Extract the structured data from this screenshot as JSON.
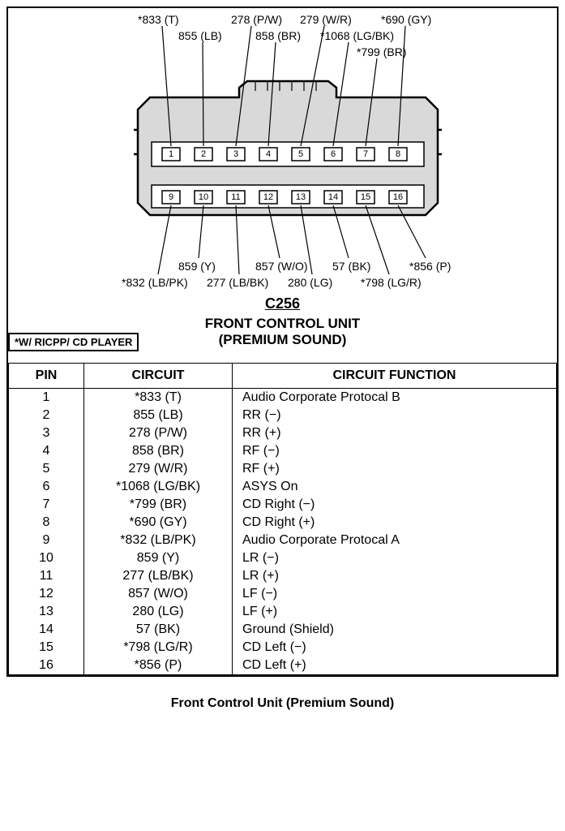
{
  "connector": {
    "id_label": "C256",
    "title_line1": "FRONT CONTROL UNIT",
    "title_line2": "(PREMIUM SOUND)",
    "note": "*W/ RICPP/ CD PLAYER",
    "top_row_pins": [
      1,
      2,
      3,
      4,
      5,
      6,
      7,
      8
    ],
    "bottom_row_pins": [
      9,
      10,
      11,
      12,
      13,
      14,
      15,
      16
    ],
    "body_fill": "#d9d9d9",
    "stroke_color": "#000000",
    "pin_box_w": 22,
    "pin_box_h": 16
  },
  "top_labels": {
    "l0": "*833 (T)",
    "l1": "855 (LB)",
    "l2": "278 (P/W)",
    "l3": "858 (BR)",
    "l4": "279 (W/R)",
    "l5": "*1068 (LG/BK)",
    "l6": "*799 (BR)",
    "l7": "*690 (GY)"
  },
  "bottom_labels": {
    "l0": "*832 (LB/PK)",
    "l1": "859 (Y)",
    "l2": "277 (LB/BK)",
    "l3": "857 (W/O)",
    "l4": "280 (LG)",
    "l5": "57 (BK)",
    "l6": "*798 (LG/R)",
    "l7": "*856 (P)"
  },
  "table": {
    "headers": {
      "pin": "PIN",
      "circuit": "CIRCUIT",
      "func": "CIRCUIT FUNCTION"
    },
    "rows": [
      {
        "pin": "1",
        "circuit": "*833 (T)",
        "func": "Audio Corporate Protocal B"
      },
      {
        "pin": "2",
        "circuit": "855 (LB)",
        "func": "RR (−)"
      },
      {
        "pin": "3",
        "circuit": "278 (P/W)",
        "func": "RR (+)"
      },
      {
        "pin": "4",
        "circuit": "858 (BR)",
        "func": "RF (−)"
      },
      {
        "pin": "5",
        "circuit": "279 (W/R)",
        "func": "RF (+)"
      },
      {
        "pin": "6",
        "circuit": "*1068 (LG/BK)",
        "func": "ASYS On"
      },
      {
        "pin": "7",
        "circuit": "*799 (BR)",
        "func": "CD Right (−)"
      },
      {
        "pin": "8",
        "circuit": "*690 (GY)",
        "func": "CD Right (+)"
      },
      {
        "pin": "9",
        "circuit": "*832 (LB/PK)",
        "func": "Audio Corporate Protocal A"
      },
      {
        "pin": "10",
        "circuit": "859 (Y)",
        "func": "LR (−)"
      },
      {
        "pin": "11",
        "circuit": "277 (LB/BK)",
        "func": "LR (+)"
      },
      {
        "pin": "12",
        "circuit": "857 (W/O)",
        "func": "LF (−)"
      },
      {
        "pin": "13",
        "circuit": "280 (LG)",
        "func": "LF (+)"
      },
      {
        "pin": "14",
        "circuit": "57 (BK)",
        "func": "Ground (Shield)"
      },
      {
        "pin": "15",
        "circuit": "*798 (LG/R)",
        "func": "CD Left (−)"
      },
      {
        "pin": "16",
        "circuit": "*856 (P)",
        "func": "CD Left (+)"
      }
    ]
  },
  "caption": "Front Control Unit (Premium Sound)"
}
